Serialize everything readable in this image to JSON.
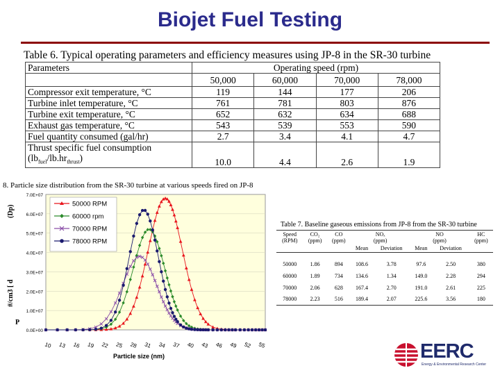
{
  "slide": {
    "title": "Biojet Fuel Testing"
  },
  "table6": {
    "caption": "Table 6. Typical operating parameters and efficiency measures using JP-8 in the SR-30 turbine",
    "header_param": "Parameters",
    "header_speed": "Operating speed (rpm)",
    "speeds": [
      "50,000",
      "60,000",
      "70,000",
      "78,000"
    ],
    "rows": [
      {
        "label": "Compressor exit temperature, °C",
        "values": [
          "119",
          "144",
          "177",
          "206"
        ]
      },
      {
        "label": "Turbine inlet temperature, °C",
        "values": [
          "761",
          "781",
          "803",
          "876"
        ]
      },
      {
        "label": "Turbine exit temperature, °C",
        "values": [
          "652",
          "632",
          "634",
          "688"
        ]
      },
      {
        "label": "Exhaust gas temperature, °C",
        "values": [
          "543",
          "539",
          "553",
          "590"
        ]
      },
      {
        "label": "Fuel quantity consumed (gal/hr)",
        "values": [
          "2.7",
          "3.4",
          "4.1",
          "4.7"
        ]
      }
    ],
    "tsfc": {
      "line1": "Thrust specific fuel consumption",
      "lb": "(lb",
      "fuel": "fuel",
      "mid": "/lb.hr",
      "thrust": "thrust",
      "end": ")",
      "values": [
        "10.0",
        "4.4",
        "2.6",
        "1.9"
      ]
    }
  },
  "figure8": {
    "caption": "8.  Particle size distribution from the SR-30 turbine at various speeds fired on JP-8",
    "chart_data": {
      "type": "line",
      "title": "",
      "xlabel": "Particle size (nm)",
      "ylabel_parts": [
        "#/cm3 [ d",
        "(Dp)",
        "d"
      ],
      "x": [
        10,
        12,
        14,
        16,
        18,
        20,
        22,
        24,
        26,
        28,
        30,
        32,
        34,
        36,
        38,
        40,
        42,
        44,
        46,
        48,
        50,
        52,
        54,
        56,
        58,
        60,
        62,
        64,
        66,
        68,
        70,
        72,
        74,
        76,
        78,
        80,
        84,
        88,
        92,
        96,
        100,
        105,
        110,
        115,
        120,
        125,
        130,
        140,
        150,
        160,
        170,
        180,
        190,
        200,
        215,
        230,
        245,
        260,
        275,
        290,
        305,
        320
      ],
      "x_ticks": [
        "10",
        "13",
        "16",
        "19",
        "22",
        "25",
        "28",
        "31",
        "34",
        "37",
        "40",
        "43",
        "46",
        "49",
        "52",
        "55"
      ],
      "ylim": [
        0,
        70000000
      ],
      "y_ticks": [
        "7.0E+07",
        "6.0E+07",
        "5.0E+07",
        "4.0E+07",
        "3.0E+07",
        "2.0E+07",
        "1.0E+07",
        "0.0E+00"
      ],
      "grid": true,
      "legend_position": "top-left",
      "series": [
        {
          "name": "50000 RPM",
          "color": "#e8141c",
          "marker": "triangle",
          "peak_x": 66,
          "peak_y": 68000000,
          "spread": 0.27
        },
        {
          "name": "60000 rpm",
          "color": "#2a8a2a",
          "marker": "diamond",
          "peak_x": 51,
          "peak_y": 52000000,
          "spread": 0.25
        },
        {
          "name": "70000 RPM",
          "color": "#8a4ea8",
          "marker": "x",
          "peak_x": 44,
          "peak_y": 38000000,
          "spread": 0.27
        },
        {
          "name": "78000 RPM",
          "color": "#1a1a6e",
          "marker": "circle",
          "peak_x": 47,
          "peak_y": 62000000,
          "spread": 0.23
        }
      ]
    }
  },
  "table7": {
    "caption": "Table 7. Baseline gaseous emissions from JP-8 from the SR-30 turbine",
    "headers": {
      "speed": [
        "Speed",
        "(RPM)"
      ],
      "co2": [
        "CO₂",
        "(ppm)"
      ],
      "co": [
        "CO",
        "(ppm)"
      ],
      "nox": [
        "NOₓ",
        "(ppm)"
      ],
      "no": [
        "NO",
        "(ppm)"
      ],
      "hc": [
        "HC",
        "(ppm)"
      ],
      "mean": "Mean",
      "deviation": "Deviation"
    },
    "rows": [
      [
        "50000",
        "1.86",
        "894",
        "108.6",
        "3.78",
        "97.6",
        "2.50",
        "380"
      ],
      [
        "60000",
        "1.89",
        "734",
        "134.6",
        "1.34",
        "149.0",
        "2.28",
        "294"
      ],
      [
        "70000",
        "2.06",
        "628",
        "167.4",
        "2.70",
        "191.0",
        "2.61",
        "225"
      ],
      [
        "78000",
        "2.23",
        "516",
        "189.4",
        "2.07",
        "225.6",
        "3.56",
        "180"
      ]
    ]
  },
  "logo": {
    "name": "EERC",
    "subtitle": "Energy & Environmental Research Center",
    "colors": {
      "red": "#c8102e",
      "navy": "#1f2a6b"
    }
  }
}
